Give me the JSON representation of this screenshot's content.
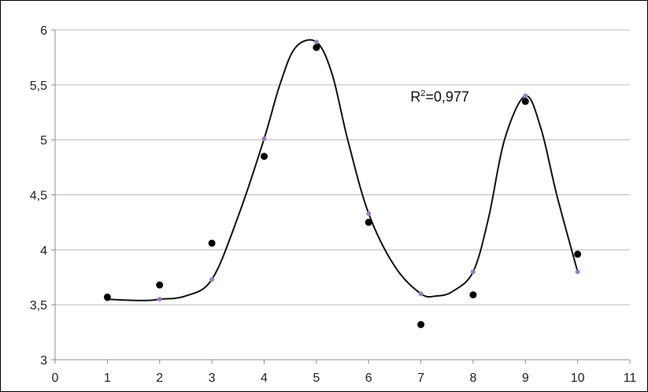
{
  "chart_data": {
    "type": "scatter",
    "x_ticks": [
      "0",
      "1",
      "2",
      "3",
      "4",
      "5",
      "6",
      "7",
      "8",
      "9",
      "10",
      "11"
    ],
    "y_ticks": [
      "3",
      "3,5",
      "4",
      "4,5",
      "5",
      "5,5",
      "6"
    ],
    "xlim": [
      0,
      11
    ],
    "ylim": [
      3,
      6
    ],
    "grid": "horizontal",
    "series": [
      {
        "role": "observed",
        "color": "#000000",
        "x": [
          1,
          2,
          3,
          4,
          5,
          6,
          7,
          8,
          9,
          10
        ],
        "y": [
          3.57,
          3.68,
          4.06,
          4.85,
          5.84,
          4.25,
          3.32,
          3.59,
          5.35,
          3.96
        ]
      },
      {
        "role": "fitted",
        "color": "#9b7fc4",
        "x": [
          1,
          2,
          3,
          4,
          5,
          6,
          7,
          8,
          9,
          10
        ],
        "y": [
          3.55,
          3.55,
          3.73,
          5.01,
          5.89,
          4.33,
          3.6,
          3.8,
          5.4,
          3.8
        ]
      }
    ],
    "curve": {
      "color": "#111111",
      "points": [
        [
          1,
          3.55
        ],
        [
          1.5,
          3.54
        ],
        [
          1.8,
          3.54
        ],
        [
          2,
          3.55
        ],
        [
          2.5,
          3.58
        ],
        [
          3,
          3.73
        ],
        [
          3.5,
          4.3
        ],
        [
          4,
          5.01
        ],
        [
          4.3,
          5.5
        ],
        [
          4.6,
          5.84
        ],
        [
          5,
          5.89
        ],
        [
          5.3,
          5.6
        ],
        [
          5.6,
          5.0
        ],
        [
          6,
          4.33
        ],
        [
          6.5,
          3.85
        ],
        [
          7,
          3.6
        ],
        [
          7.3,
          3.58
        ],
        [
          7.6,
          3.62
        ],
        [
          8,
          3.8
        ],
        [
          8.3,
          4.3
        ],
        [
          8.6,
          5.0
        ],
        [
          9,
          5.4
        ],
        [
          9.3,
          5.1
        ],
        [
          9.6,
          4.5
        ],
        [
          10,
          3.8
        ]
      ]
    },
    "annotation": {
      "base": "R",
      "sup": "2",
      "rest": "=0,977",
      "x": 6.8,
      "y": 5.35
    }
  }
}
